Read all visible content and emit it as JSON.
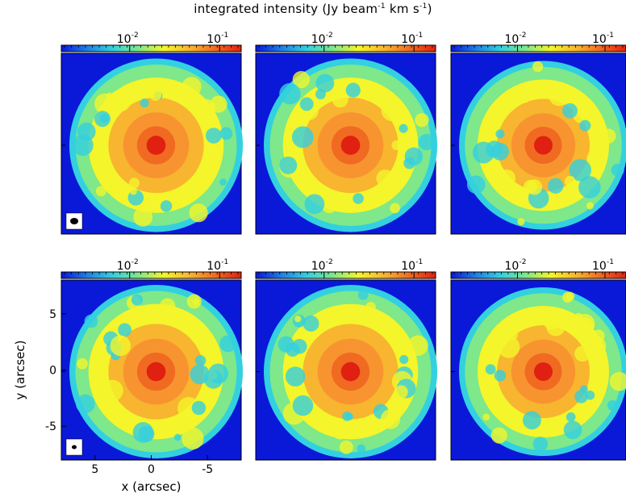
{
  "figure_title": {
    "prefix": "integrated intensity (Jy beam",
    "sup1": "-1",
    "middle": " km s",
    "sup2": "-1",
    "suffix": ")"
  },
  "colors": {
    "background": "#0a18d8",
    "colormap": [
      "#0a18d8",
      "#1f7fe6",
      "#33d0e0",
      "#7ee88a",
      "#f4f52a",
      "#f8b530",
      "#f06a22",
      "#e02010"
    ]
  },
  "chart_data": [
    {
      "type": "heatmap",
      "panel": "top-left",
      "colorbar_ticks": [
        "10",
        "10"
      ],
      "colorbar_exps": [
        "-2",
        "-1"
      ],
      "beam": "small ellipse",
      "peak_offset": [
        0,
        0
      ]
    },
    {
      "type": "heatmap",
      "panel": "top-middle",
      "colorbar_ticks": [
        "10",
        "10"
      ],
      "colorbar_exps": [
        "-2",
        "-1"
      ],
      "peak_offset": [
        0,
        0
      ]
    },
    {
      "type": "heatmap",
      "panel": "top-right",
      "colorbar_ticks": [
        "10",
        "10"
      ],
      "colorbar_exps": [
        "-2",
        "-1"
      ],
      "peak_offset": [
        0,
        0
      ]
    },
    {
      "type": "heatmap",
      "panel": "bottom-left",
      "colorbar_ticks": [
        "10",
        "10"
      ],
      "colorbar_exps": [
        "-2",
        "-1"
      ],
      "xlabel": "x (arcsec)",
      "ylabel": "y (arcsec)",
      "xticks": [
        "5",
        "0",
        "-5"
      ],
      "yticks": [
        "5",
        "0",
        "-5"
      ],
      "xlim": [
        8,
        -8
      ],
      "ylim": [
        -8,
        8
      ],
      "beam": "small ellipse",
      "peak_offset": [
        0,
        0
      ]
    },
    {
      "type": "heatmap",
      "panel": "bottom-middle",
      "colorbar_ticks": [
        "10",
        "10"
      ],
      "colorbar_exps": [
        "-2",
        "-1"
      ],
      "peak_offset": [
        0,
        0
      ]
    },
    {
      "type": "heatmap",
      "panel": "bottom-right",
      "colorbar_ticks": [
        "10",
        "10"
      ],
      "colorbar_exps": [
        "-2",
        "-1"
      ],
      "peak_offset": [
        0,
        0
      ]
    }
  ]
}
